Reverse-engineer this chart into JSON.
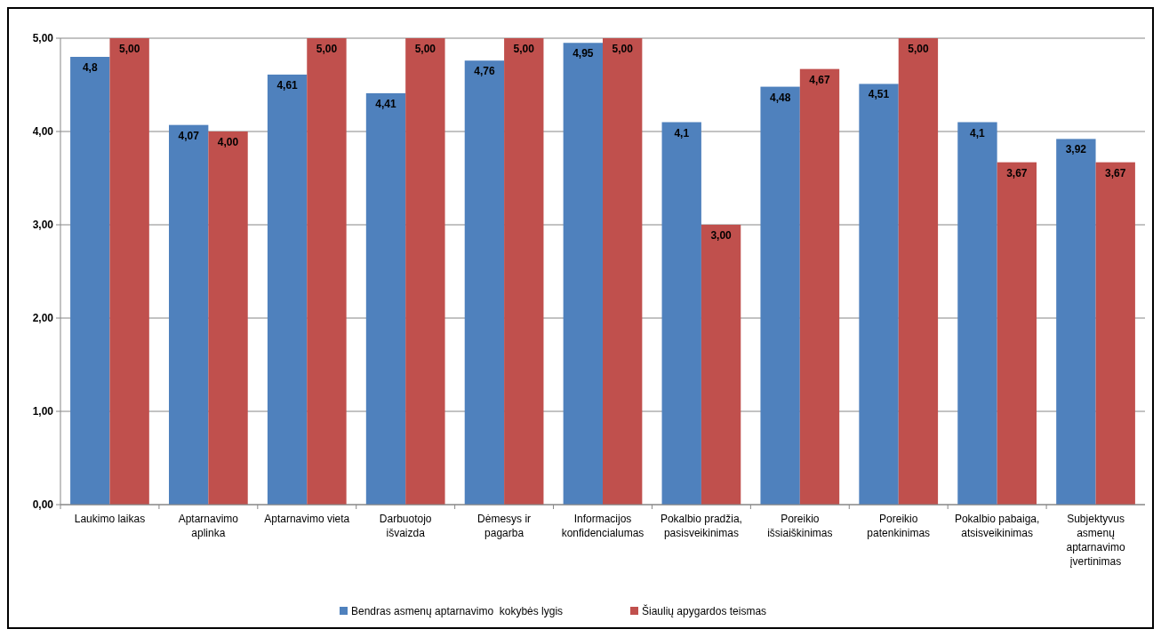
{
  "chart_data": {
    "type": "bar",
    "categories": [
      "Laukimo laikas",
      "Aptarnavimo aplinka",
      "Aptarnavimo vieta",
      "Darbuotojo išvaizda",
      "Dėmesys ir pagarba",
      "Informacijos konfidencialumas",
      "Pokalbio pradžia, pasisveikinimas",
      "Poreikio išsiaiškinimas",
      "Poreikio patenkinimas",
      "Pokalbio pabaiga, atsisveikinimas",
      "Subjektyvus asmenų aptarnavimo įvertinimas"
    ],
    "series": [
      {
        "name": "Bendras asmenų aptarnavimo  kokybės lygis",
        "color": "#4f81bd",
        "values": [
          4.8,
          4.07,
          4.61,
          4.41,
          4.76,
          4.95,
          4.1,
          4.48,
          4.51,
          4.1,
          3.92
        ],
        "value_labels": [
          "4,8",
          "4,07",
          "4,61",
          "4,41",
          "4,76",
          "4,95",
          "4,1",
          "4,48",
          "4,51",
          "4,1",
          "3,92"
        ]
      },
      {
        "name": "Šiaulių apygardos teismas",
        "color": "#c0504d",
        "values": [
          5,
          4,
          5,
          5,
          5,
          5,
          3,
          4.67,
          5,
          3.67,
          3.67
        ],
        "value_labels": [
          "5,00",
          "4,00",
          "5,00",
          "5,00",
          "5,00",
          "5,00",
          "3,00",
          "4,67",
          "5,00",
          "3,67",
          "3,67"
        ]
      }
    ],
    "ylim": [
      0,
      5
    ],
    "yticks": [
      {
        "value": 0,
        "label": "0,00"
      },
      {
        "value": 1,
        "label": "1,00"
      },
      {
        "value": 2,
        "label": "2,00"
      },
      {
        "value": 3,
        "label": "3,00"
      },
      {
        "value": 4,
        "label": "4,00"
      },
      {
        "value": 5,
        "label": "5,00"
      }
    ],
    "grid": "y",
    "legend": "bottom"
  }
}
